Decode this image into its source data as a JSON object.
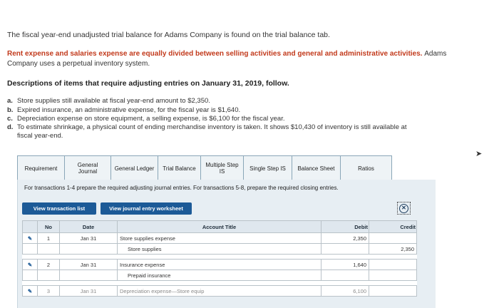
{
  "intro": "The fiscal year-end unadjusted trial balance for Adams Company is found on the trial balance tab.",
  "note_bold": "Rent expense and salaries expense are equally divided between selling activities and general and administrative activities.",
  "note_tail": "Adams",
  "note_line2": "Company uses a perpetual inventory system.",
  "desc_title": "Descriptions of items that require adjusting entries on January 31, 2019, follow.",
  "items": [
    {
      "letter": "a.",
      "text": "Store supplies still available at fiscal year-end amount to $2,350."
    },
    {
      "letter": "b.",
      "text": "Expired insurance, an administrative expense, for the fiscal year is $1,640."
    },
    {
      "letter": "c.",
      "text": "Depreciation expense on store equipment, a selling expense, is $6,100 for the fiscal year."
    },
    {
      "letter": "d.",
      "text": "To estimate shrinkage, a physical count of ending merchandise inventory is taken. It shows $10,430 of inventory is still available at",
      "cont": "fiscal year-end."
    }
  ],
  "tabs": [
    "Requirement",
    "General Journal",
    "General Ledger",
    "Trial Balance",
    "Multiple Step IS",
    "Single Step IS",
    "Balance Sheet",
    "Ratios"
  ],
  "instructions": "For transactions 1-4 prepare the required adjusting journal entries. For transactions 5-8, prepare the required closing entries.",
  "buttons": {
    "transaction_list": "View transaction list",
    "journal_worksheet": "View journal entry worksheet"
  },
  "table": {
    "headers": [
      "No",
      "Date",
      "Account Title",
      "Debit",
      "Credit"
    ],
    "rows": [
      {
        "no": "1",
        "date": "Jan 31",
        "account": "Store supplies expense",
        "debit": "2,350",
        "credit": ""
      },
      {
        "no": "",
        "date": "",
        "account": "Store supplies",
        "debit": "",
        "credit": "2,350"
      },
      {
        "no": "2",
        "date": "Jan 31",
        "account": "Insurance expense",
        "debit": "1,640",
        "credit": ""
      },
      {
        "no": "",
        "date": "",
        "account": "Prepaid insurance",
        "debit": "",
        "credit": ""
      },
      {
        "no": "3",
        "date": "Jan 31",
        "account": "Depreciation expense—Store equip",
        "debit": "6,100",
        "credit": ""
      }
    ]
  }
}
